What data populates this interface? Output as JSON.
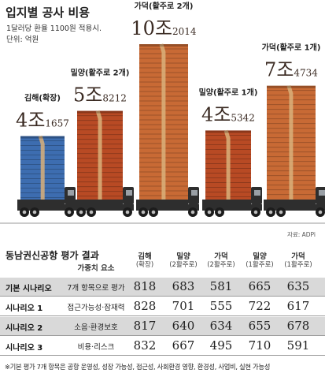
{
  "header": {
    "title": "입지별 공사 비용",
    "note_rate": "1달러당 환율 1100원 적용시.",
    "note_unit": "단위: 억원"
  },
  "chart_data": {
    "type": "bar",
    "title": "입지별 공사 비용",
    "unit": "억원",
    "categories": [
      "김해(확장)",
      "밀양(활주로 2개)",
      "가덕(활주로 2개)",
      "밀양(활주로 1개)",
      "가덕(활주로 1개)"
    ],
    "values": [
      41657,
      58212,
      102014,
      45342,
      74734
    ],
    "value_labels": [
      {
        "big": "4조",
        "small": "1657"
      },
      {
        "big": "5조",
        "small": "8212"
      },
      {
        "big": "10조",
        "small": "2014"
      },
      {
        "big": "4조",
        "small": "5342"
      },
      {
        "big": "7조",
        "small": "4734"
      }
    ],
    "colors": {
      "gimhae": "#3d6db0",
      "miryang": "#b84a24",
      "gadeok": "#c86a35",
      "band": "#d9b07a",
      "truck": "#2e2e2e"
    },
    "ylim": [
      0,
      110000
    ],
    "grid": false,
    "legend": "none"
  },
  "source": "자료: ADPi",
  "table": {
    "title": "동남권신공항 평가 결과",
    "factor_header": "가중치 요소",
    "columns": [
      {
        "name": "김해",
        "sub": "(확장)"
      },
      {
        "name": "밀양",
        "sub": "(2활주로)"
      },
      {
        "name": "가덕",
        "sub": "(2활주로)"
      },
      {
        "name": "밀양",
        "sub": "(1활주로)"
      },
      {
        "name": "가덕",
        "sub": "(1활주로)"
      }
    ],
    "rows": [
      {
        "name": "기본 시나리오",
        "factor": "7개 항목으로 평가",
        "scores": [
          "818",
          "683",
          "581",
          "665",
          "635"
        ]
      },
      {
        "name": "시나리오 1",
        "factor": "접근가능성·잠재력",
        "scores": [
          "828",
          "701",
          "555",
          "722",
          "617"
        ]
      },
      {
        "name": "시나리오 2",
        "factor": "소음·환경보호",
        "scores": [
          "817",
          "640",
          "634",
          "655",
          "678"
        ]
      },
      {
        "name": "시나리오 3",
        "factor": "비용·리스크",
        "scores": [
          "832",
          "667",
          "495",
          "710",
          "591"
        ]
      }
    ],
    "footnote": "※기본 평가 7개 항목은 공항 운영성, 성장 가능성, 접근성, 사회환경 영향, 환경성, 사업비, 실현 가능성"
  }
}
